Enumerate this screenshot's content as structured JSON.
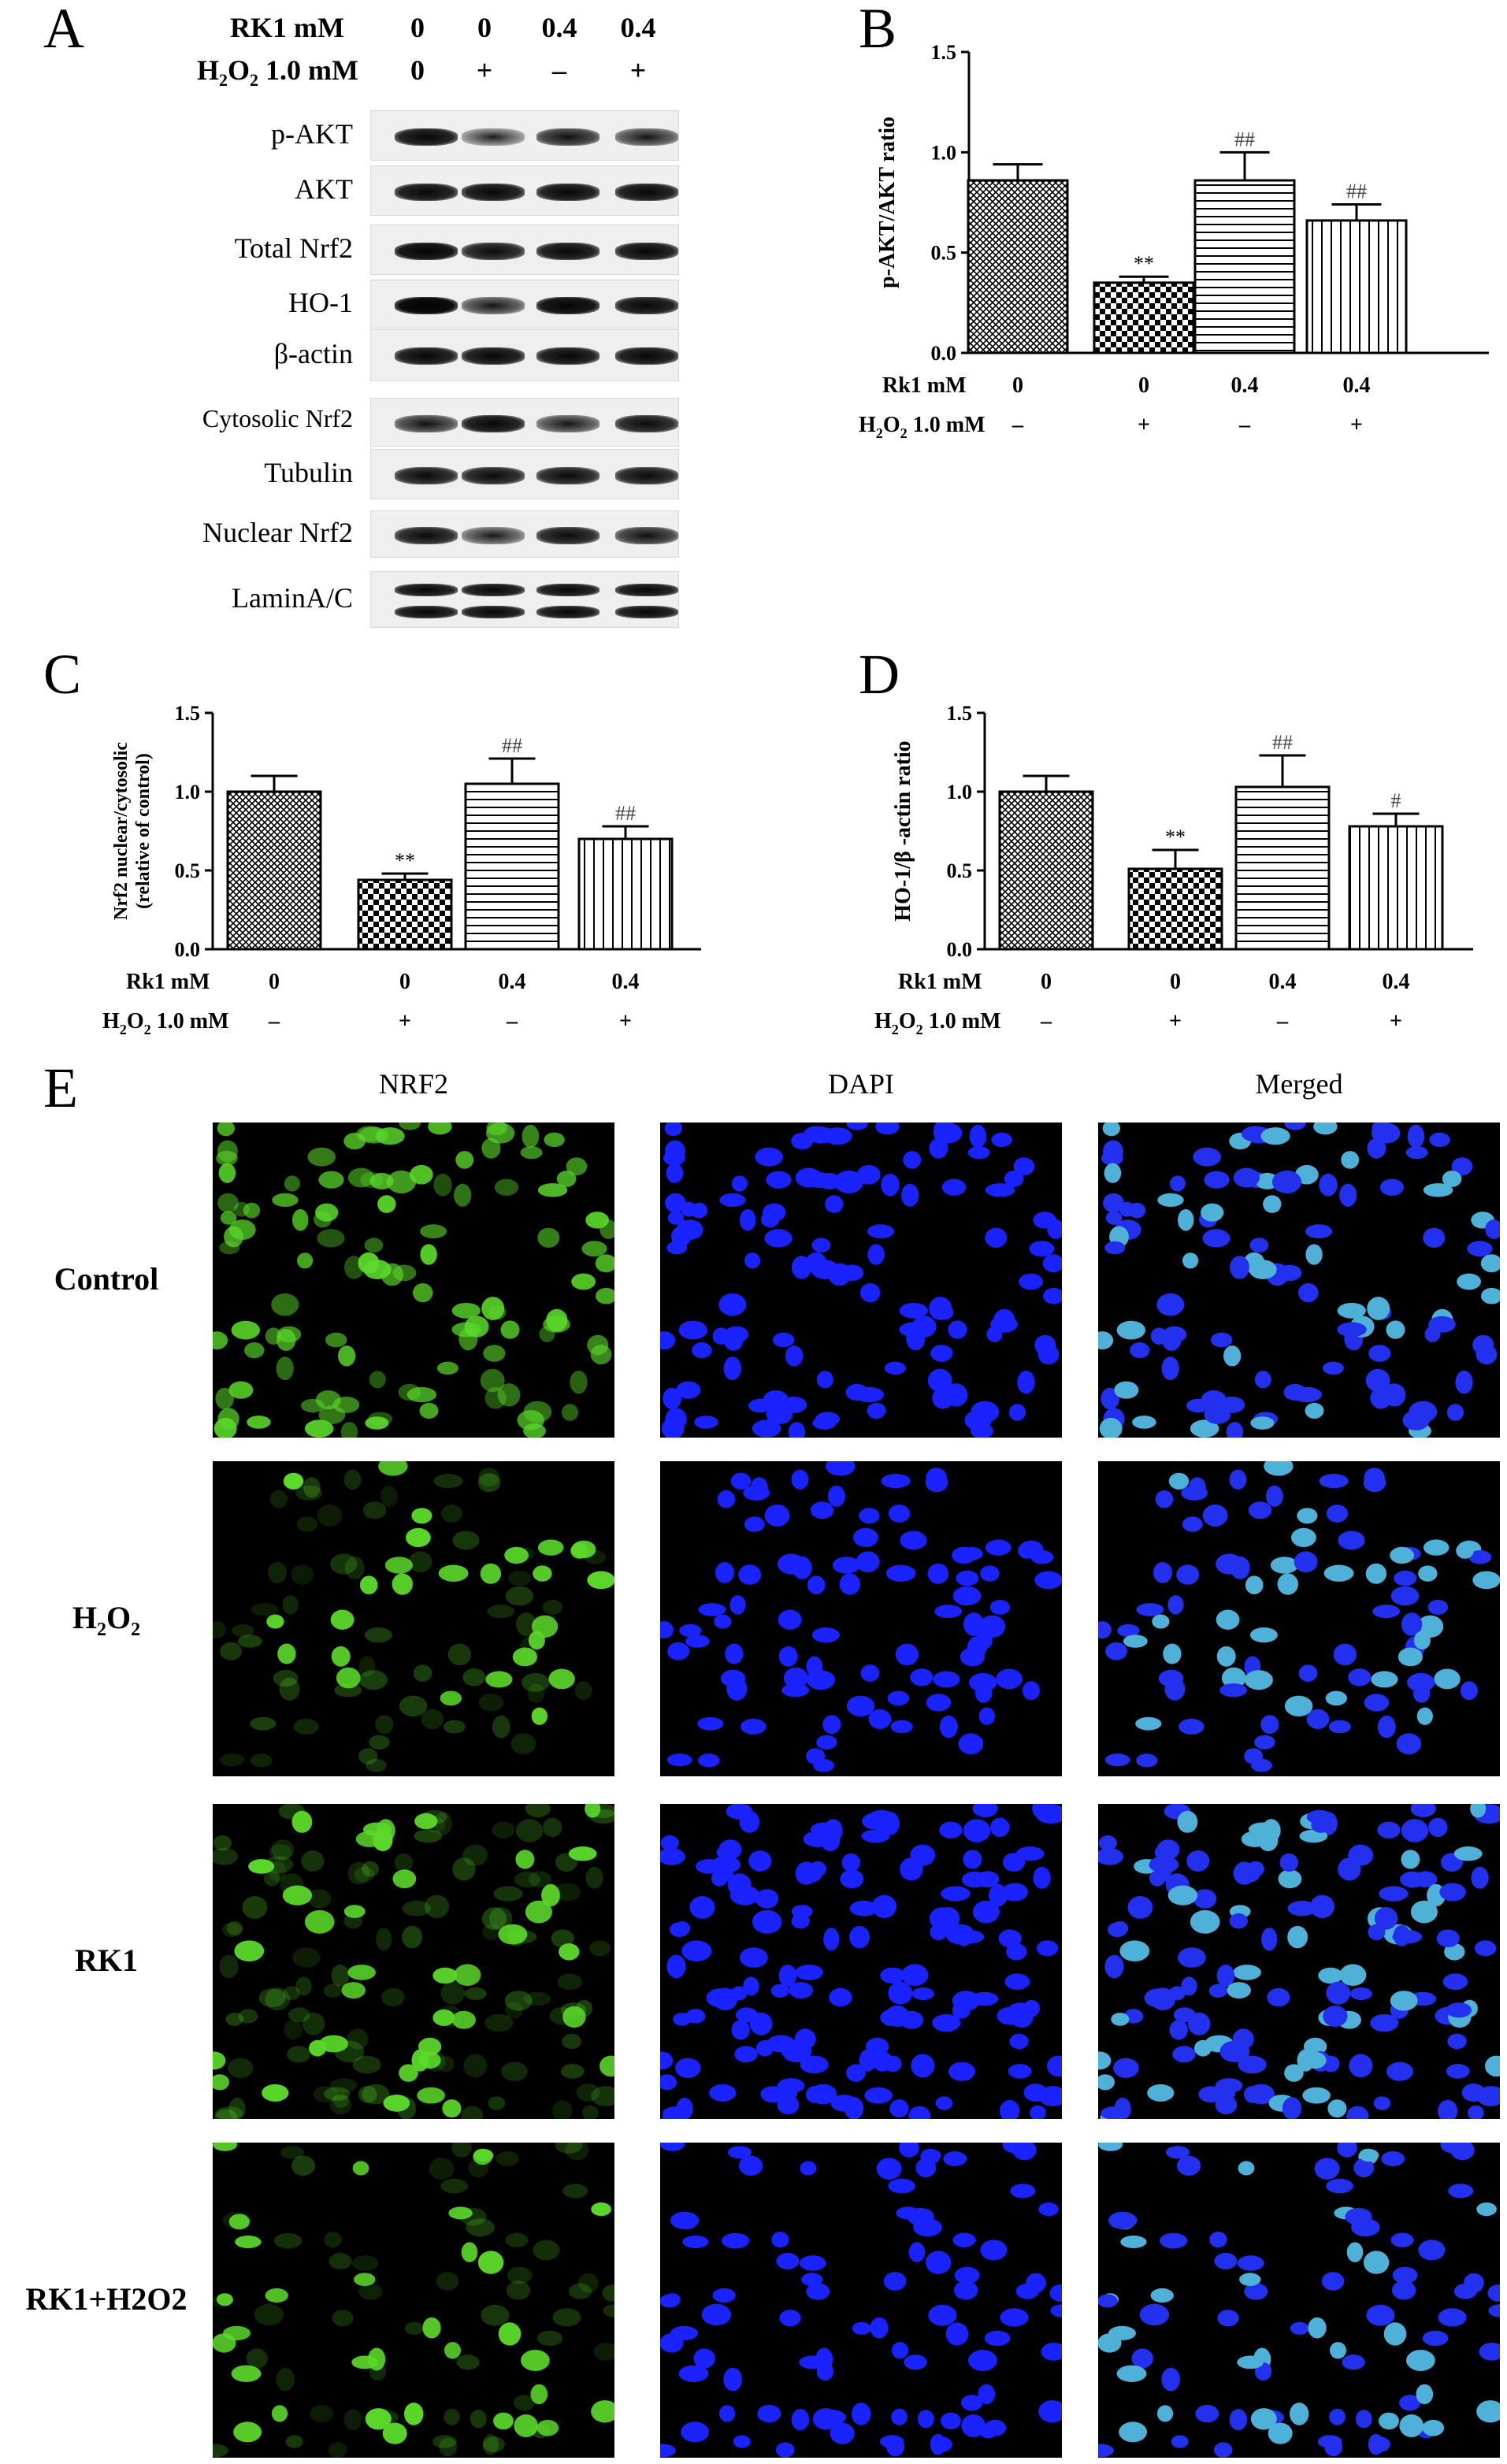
{
  "panel_a": {
    "letter": "A",
    "rk1_label": "RK1 mM",
    "rk1_values": [
      "0",
      "0",
      "0.4",
      "0.4"
    ],
    "h2o2_label": "H2O2 1.0 mM",
    "h2o2_values": [
      "0",
      "+",
      "–",
      "+"
    ],
    "blots": [
      {
        "label": "p-AKT",
        "intensities": [
          0.85,
          0.45,
          0.7,
          0.6
        ]
      },
      {
        "label": "AKT",
        "intensities": [
          0.85,
          0.85,
          0.85,
          0.85
        ]
      },
      {
        "label": "Total Nrf2",
        "intensities": [
          0.9,
          0.8,
          0.85,
          0.85
        ]
      },
      {
        "label": "HO-1",
        "intensities": [
          0.95,
          0.6,
          0.9,
          0.85
        ]
      },
      {
        "label": "β-actin",
        "intensities": [
          0.85,
          0.85,
          0.85,
          0.85
        ]
      },
      {
        "label": "Cytosolic Nrf2",
        "intensities": [
          0.65,
          0.85,
          0.6,
          0.8
        ]
      },
      {
        "label": "Tubulin",
        "intensities": [
          0.8,
          0.8,
          0.8,
          0.8
        ]
      },
      {
        "label": "Nuclear Nrf2",
        "intensities": [
          0.8,
          0.55,
          0.8,
          0.7
        ]
      },
      {
        "label": "LaminA/C",
        "intensities": [
          0.85,
          0.85,
          0.85,
          0.85
        ]
      }
    ]
  },
  "chart_data": [
    {
      "panel": "B",
      "type": "bar",
      "ylabel": "p-AKT/AKT ratio",
      "ylim": [
        0,
        1.5
      ],
      "yticks": [
        "0.0",
        "0.5",
        "1.0",
        "1.5"
      ],
      "values": [
        0.86,
        0.35,
        0.86,
        0.66
      ],
      "errors": [
        0.08,
        0.03,
        0.14,
        0.08
      ],
      "annotations": [
        "",
        "**",
        "##",
        "##"
      ],
      "rk1_label": "Rk1 mM",
      "rk1_values": [
        "0",
        "0",
        "0.4",
        "0.4"
      ],
      "h2o2_label": "H2O2 1.0 mM",
      "h2o2_values": [
        "–",
        "+",
        "–",
        "+"
      ]
    },
    {
      "panel": "C",
      "type": "bar",
      "ylabel": "Nrf2 nuclear/cytosolic (relative of control)",
      "ylim": [
        0,
        1.5
      ],
      "yticks": [
        "0.0",
        "0.5",
        "1.0",
        "1.5"
      ],
      "values": [
        1.0,
        0.44,
        1.05,
        0.7
      ],
      "errors": [
        0.1,
        0.04,
        0.16,
        0.08
      ],
      "annotations": [
        "",
        "**",
        "##",
        "##"
      ],
      "rk1_label": "Rk1 mM",
      "rk1_values": [
        "0",
        "0",
        "0.4",
        "0.4"
      ],
      "h2o2_label": "H2O2 1.0 mM",
      "h2o2_values": [
        "–",
        "+",
        "–",
        "+"
      ]
    },
    {
      "panel": "D",
      "type": "bar",
      "ylabel": "HO-1/β -actin ratio",
      "ylim": [
        0,
        1.5
      ],
      "yticks": [
        "0.0",
        "0.5",
        "1.0",
        "1.5"
      ],
      "values": [
        1.0,
        0.51,
        1.03,
        0.78
      ],
      "errors": [
        0.1,
        0.12,
        0.2,
        0.08
      ],
      "annotations": [
        "",
        "**",
        "##",
        "#"
      ],
      "rk1_label": "Rk1 mM",
      "rk1_values": [
        "0",
        "0",
        "0.4",
        "0.4"
      ],
      "h2o2_label": "H2O2 1.0 mM",
      "h2o2_values": [
        "–",
        "+",
        "–",
        "+"
      ]
    }
  ],
  "panel_e": {
    "letter": "E",
    "columns": [
      "NRF2",
      "DAPI",
      "Merged"
    ],
    "rows": [
      "Control",
      "H2O2",
      "RK1",
      "RK1+H2O2"
    ],
    "channel_colors": {
      "NRF2": "#5bd82a",
      "DAPI": "#1a22ff",
      "Merged": "#4fb0d8"
    }
  }
}
